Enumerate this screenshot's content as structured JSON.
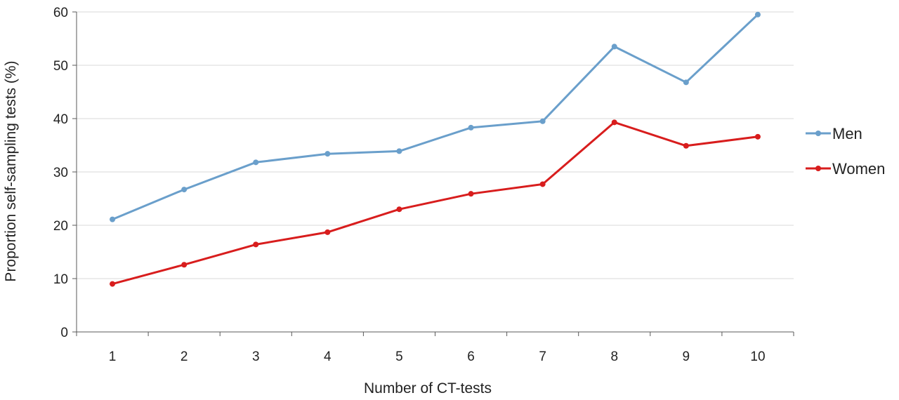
{
  "chart_data": {
    "type": "line",
    "title": "",
    "xlabel": "Number of CT-tests",
    "ylabel": "Proportion self-sampling tests (%)",
    "categories": [
      "1",
      "2",
      "3",
      "4",
      "5",
      "6",
      "7",
      "8",
      "9",
      "10"
    ],
    "ylim": [
      0,
      60
    ],
    "yticks": [
      "0",
      "10",
      "20",
      "30",
      "40",
      "50",
      "60"
    ],
    "grid": true,
    "legend_position": "right",
    "series": [
      {
        "name": "Men",
        "color": "#6a9fcb",
        "values": [
          21.1,
          26.7,
          31.8,
          33.4,
          33.9,
          38.3,
          39.5,
          53.5,
          46.8,
          59.5
        ]
      },
      {
        "name": "Women",
        "color": "#d81d1d",
        "values": [
          9.0,
          12.6,
          16.4,
          18.7,
          23.0,
          25.9,
          27.7,
          39.3,
          34.9,
          36.6
        ]
      }
    ]
  }
}
